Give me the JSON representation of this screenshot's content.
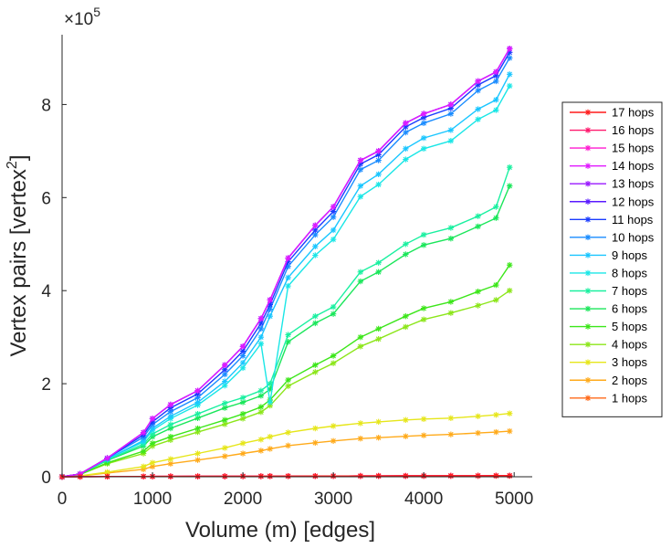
{
  "chart_data": {
    "type": "line",
    "title": "",
    "xlabel": "Volume (m) [edges]",
    "ylabel": "Vertex pairs [vertex",
    "ylabel_superscript": "2",
    "ylabel_closing": "]",
    "y_exponent_label": "×10",
    "y_exponent_power": "5",
    "xlim": [
      0,
      5200
    ],
    "ylim": [
      0,
      950000
    ],
    "x_ticks": [
      0,
      1000,
      2000,
      3000,
      4000,
      5000
    ],
    "x_tick_labels": [
      "0",
      "1000",
      "2000",
      "3000",
      "4000",
      "5000"
    ],
    "y_ticks": [
      0,
      200000,
      400000,
      600000,
      800000
    ],
    "y_tick_labels": [
      "0",
      "2",
      "4",
      "6",
      "8"
    ],
    "grid": false,
    "legend_position": "outside-right",
    "x": [
      0,
      200,
      500,
      900,
      1000,
      1200,
      1500,
      1800,
      2000,
      2200,
      2300,
      2500,
      2800,
      3000,
      3300,
      3500,
      3800,
      4000,
      4300,
      4600,
      4800,
      4950
    ],
    "series": [
      {
        "name": "17 hops",
        "color": "#ff1a1a",
        "values": [
          0,
          200,
          400,
          600,
          700,
          800,
          900,
          1000,
          1100,
          1200,
          1300,
          1400,
          1500,
          1600,
          1700,
          1800,
          1900,
          2000,
          2100,
          2200,
          2300,
          2400
        ]
      },
      {
        "name": "16 hops",
        "color": "#ff1a6e",
        "values": [
          0,
          200,
          400,
          600,
          700,
          800,
          900,
          1000,
          1100,
          1200,
          1300,
          1400,
          1500,
          1600,
          1700,
          1800,
          1900,
          2000,
          2100,
          2200,
          2300,
          2400
        ]
      },
      {
        "name": "15 hops",
        "color": "#ff1ad0",
        "values": [
          0,
          200,
          400,
          600,
          700,
          800,
          900,
          1000,
          1100,
          1200,
          1300,
          1400,
          1500,
          1600,
          1700,
          1800,
          1900,
          2000,
          2100,
          2200,
          2300,
          2400
        ]
      },
      {
        "name": "14 hops",
        "color": "#e01aff",
        "values": [
          0,
          6000,
          40000,
          95000,
          125000,
          155000,
          185000,
          240000,
          280000,
          340000,
          380000,
          470000,
          540000,
          580000,
          680000,
          700000,
          760000,
          780000,
          800000,
          850000,
          870000,
          920000
        ]
      },
      {
        "name": "13 hops",
        "color": "#9a1aff",
        "values": [
          0,
          6000,
          40000,
          95000,
          125000,
          155000,
          185000,
          240000,
          280000,
          340000,
          380000,
          470000,
          540000,
          580000,
          680000,
          700000,
          760000,
          780000,
          800000,
          850000,
          870000,
          920000
        ]
      },
      {
        "name": "12 hops",
        "color": "#5a1aff",
        "values": [
          0,
          6000,
          40000,
          95000,
          125000,
          155000,
          185000,
          240000,
          280000,
          340000,
          380000,
          470000,
          540000,
          580000,
          680000,
          700000,
          760000,
          780000,
          800000,
          850000,
          870000,
          920000
        ]
      },
      {
        "name": "11 hops",
        "color": "#1a3cff",
        "values": [
          0,
          6000,
          40000,
          90000,
          118000,
          148000,
          178000,
          230000,
          270000,
          330000,
          370000,
          462000,
          530000,
          570000,
          672000,
          692000,
          752000,
          772000,
          792000,
          842000,
          862000,
          912000
        ]
      },
      {
        "name": "10 hops",
        "color": "#1a8cff",
        "values": [
          0,
          6000,
          40000,
          85000,
          112000,
          140000,
          170000,
          220000,
          260000,
          318000,
          360000,
          452000,
          520000,
          558000,
          660000,
          680000,
          740000,
          760000,
          780000,
          830000,
          850000,
          900000
        ]
      },
      {
        "name": "9 hops",
        "color": "#1ac6ff",
        "values": [
          0,
          6000,
          38000,
          78000,
          104000,
          130000,
          160000,
          205000,
          245000,
          300000,
          345000,
          428000,
          495000,
          530000,
          625000,
          650000,
          705000,
          728000,
          745000,
          790000,
          810000,
          865000
        ]
      },
      {
        "name": "8 hops",
        "color": "#1ae6e6",
        "values": [
          0,
          6000,
          38000,
          75000,
          100000,
          125000,
          154000,
          196000,
          234000,
          286000,
          160000,
          410000,
          476000,
          510000,
          602000,
          628000,
          682000,
          705000,
          722000,
          768000,
          788000,
          840000
        ]
      },
      {
        "name": "7 hops",
        "color": "#1af0a0",
        "values": [
          0,
          6000,
          36000,
          70000,
          92000,
          112000,
          135000,
          158000,
          170000,
          185000,
          200000,
          305000,
          345000,
          365000,
          440000,
          460000,
          500000,
          520000,
          535000,
          560000,
          580000,
          665000
        ]
      },
      {
        "name": "6 hops",
        "color": "#1ae65a",
        "values": [
          0,
          6000,
          35000,
          66000,
          86000,
          104000,
          126000,
          148000,
          160000,
          174000,
          188000,
          290000,
          330000,
          350000,
          420000,
          440000,
          478000,
          498000,
          512000,
          538000,
          556000,
          625000
        ]
      },
      {
        "name": "5 hops",
        "color": "#3ce61a",
        "values": [
          0,
          5000,
          30000,
          55000,
          72000,
          86000,
          104000,
          122000,
          135000,
          150000,
          165000,
          208000,
          240000,
          260000,
          300000,
          318000,
          345000,
          362000,
          376000,
          398000,
          412000,
          455000
        ]
      },
      {
        "name": "4 hops",
        "color": "#8ce61a",
        "values": [
          0,
          5000,
          28000,
          50000,
          66000,
          79000,
          96000,
          113000,
          125000,
          139000,
          153000,
          195000,
          225000,
          244000,
          280000,
          296000,
          322000,
          338000,
          352000,
          368000,
          380000,
          400000
        ]
      },
      {
        "name": "3 hops",
        "color": "#e6e61a",
        "values": [
          0,
          2000,
          10000,
          22000,
          30000,
          38000,
          50000,
          62000,
          72000,
          80000,
          86000,
          95000,
          104000,
          109000,
          115000,
          118000,
          122000,
          124000,
          126000,
          130000,
          133000,
          136000
        ]
      },
      {
        "name": "2 hops",
        "color": "#ffaa1a",
        "values": [
          0,
          1500,
          8000,
          16000,
          22000,
          28000,
          36000,
          44000,
          50000,
          56000,
          60000,
          67000,
          73000,
          77000,
          82000,
          84000,
          87000,
          89000,
          91000,
          94000,
          96000,
          98000
        ]
      },
      {
        "name": "1 hops",
        "color": "#ff6a1a",
        "values": [
          0,
          150,
          350,
          550,
          620,
          700,
          800,
          900,
          980,
          1060,
          1120,
          1200,
          1300,
          1380,
          1460,
          1520,
          1580,
          1640,
          1700,
          1760,
          1800,
          1850
        ]
      }
    ]
  }
}
